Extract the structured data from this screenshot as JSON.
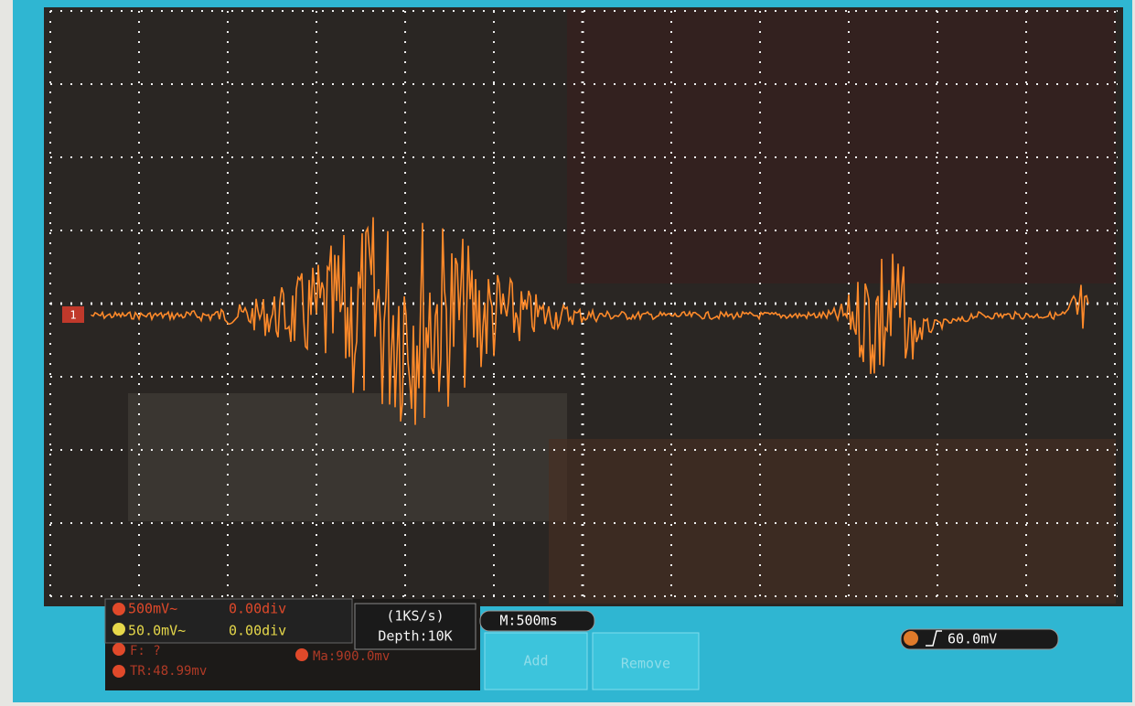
{
  "trace_marker": "1",
  "channels": [
    {
      "scale": "500mV~",
      "offset": "0.00div"
    },
    {
      "scale": "50.0mV~",
      "offset": "0.00div"
    }
  ],
  "sample_rate": "(1KS/s)",
  "depth": "Depth:10K",
  "timebase": "M:500ms",
  "frequency": "F:  ?",
  "measure": "Ma:900.0mv",
  "trigger_readout": "TR:48.99mv",
  "buttons": [
    "Add",
    "Remove"
  ],
  "trigger_level": "60.0mV"
}
